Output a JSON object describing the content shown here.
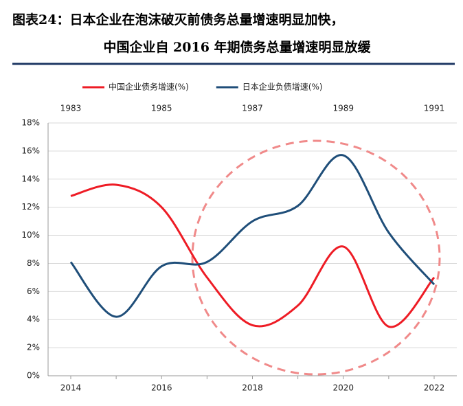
{
  "chart_data": {
    "type": "line",
    "title": "图表24：日本企业在泡沫破灭前债务总量增速明显加快，",
    "subtitle": "中国企业自 2016 年期债务总量增速明显放缓",
    "categories": [
      "2014",
      null,
      "2016",
      null,
      "2018",
      null,
      "2020",
      null,
      "2022"
    ],
    "top_categories": [
      "1983",
      null,
      "1985",
      null,
      "1987",
      null,
      "1989",
      null,
      "1991"
    ],
    "series": [
      {
        "name": "中国企业债务增速(%)",
        "color": "#ee1c25",
        "values": [
          12.8,
          13.6,
          12.0,
          7.0,
          3.6,
          5.0,
          9.2,
          3.5,
          7.0
        ]
      },
      {
        "name": "日本企业负债增速(%)",
        "color": "#1f4e79",
        "values": [
          8.1,
          4.2,
          7.8,
          8.1,
          11.0,
          12.1,
          15.7,
          10.2,
          6.5
        ],
        "axis": "top"
      }
    ],
    "ylim": [
      0,
      18
    ],
    "yticks": [
      {
        "value": 0,
        "label": "0%"
      },
      {
        "value": 2,
        "label": "2%"
      },
      {
        "value": 4,
        "label": "4%"
      },
      {
        "value": 6,
        "label": "6%"
      },
      {
        "value": 8,
        "label": "8%"
      },
      {
        "value": 10,
        "label": "10%"
      },
      {
        "value": 12,
        "label": "12%"
      },
      {
        "value": 14,
        "label": "14%"
      },
      {
        "value": 16,
        "label": "16%"
      },
      {
        "value": 18,
        "label": "18%"
      }
    ],
    "grid": true
  }
}
